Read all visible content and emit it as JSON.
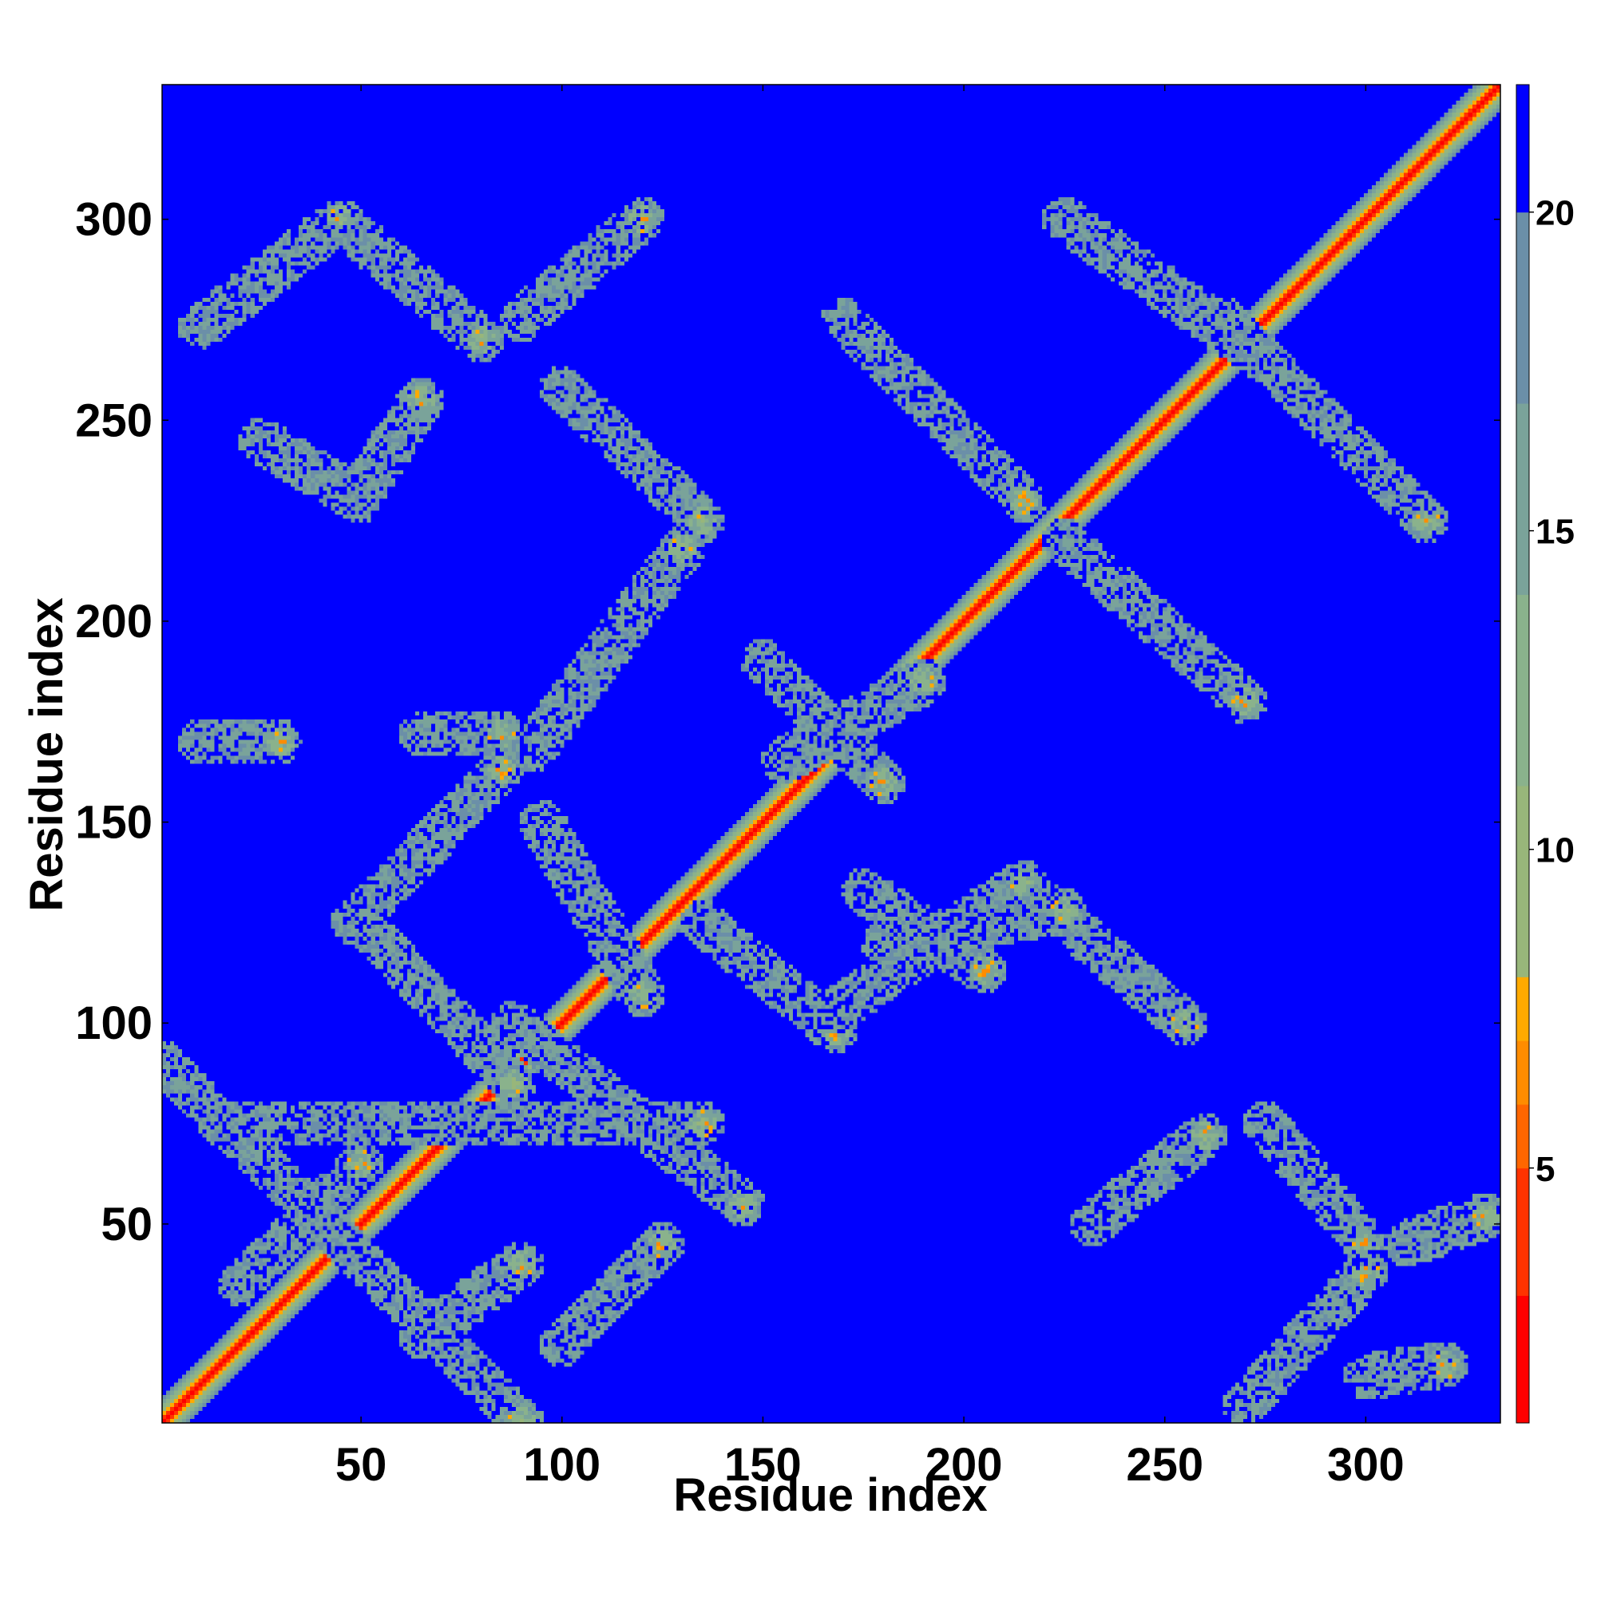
{
  "chart_data": {
    "type": "heatmap",
    "title": "",
    "xlabel": "Residue index",
    "ylabel": "Residue index",
    "n_residues": 333,
    "xlim": [
      1,
      333
    ],
    "ylim": [
      1,
      333
    ],
    "x_ticks": [
      50,
      100,
      150,
      200,
      250,
      300
    ],
    "y_ticks": [
      50,
      100,
      150,
      200,
      250,
      300
    ],
    "x_tick_labels": [
      "50",
      "100",
      "150",
      "200",
      "250",
      "300"
    ],
    "y_tick_labels": [
      "50",
      "100",
      "150",
      "200",
      "250",
      "300"
    ],
    "grid": false,
    "colorbar": {
      "position": "right",
      "range": [
        1,
        22
      ],
      "ticks": [
        5,
        10,
        15,
        20
      ],
      "tick_labels": [
        "5",
        "10",
        "15",
        "20"
      ],
      "colors": [
        "#ff0000",
        "#ff3300",
        "#ff6600",
        "#ff8c00",
        "#ffaa00",
        "#98b67a",
        "#8ab28c",
        "#7aa39a",
        "#6b8fa8",
        "#0000ff"
      ],
      "level_edges": [
        1,
        3,
        5,
        6,
        7,
        8,
        11,
        14,
        17,
        20,
        22
      ]
    },
    "background_value": 22,
    "diagonal": {
      "from": 1,
      "to": 333
    },
    "contact_bands": [
      {
        "a": [
          1,
          90
        ],
        "b": [
          90,
          1
        ]
      },
      {
        "a": [
          15,
          75
        ],
        "b": [
          135,
          75
        ]
      },
      {
        "a": [
          88,
          100
        ],
        "b": [
          145,
          55
        ]
      },
      {
        "a": [
          48,
          125
        ],
        "b": [
          85,
          163
        ]
      },
      {
        "a": [
          50,
          125
        ],
        "b": [
          88,
          85
        ]
      },
      {
        "a": [
          95,
          150
        ],
        "b": [
          120,
          107
        ]
      },
      {
        "a": [
          93,
          168
        ],
        "b": [
          130,
          218
        ]
      },
      {
        "a": [
          100,
          258
        ],
        "b": [
          135,
          225
        ]
      },
      {
        "a": [
          135,
          125
        ],
        "b": [
          168,
          98
        ]
      },
      {
        "a": [
          168,
          103
        ],
        "b": [
          215,
          135
        ]
      },
      {
        "a": [
          175,
          133
        ],
        "b": [
          205,
          113
        ]
      },
      {
        "a": [
          150,
          190
        ],
        "b": [
          180,
          160
        ]
      },
      {
        "a": [
          155,
          165
        ],
        "b": [
          190,
          185
        ]
      },
      {
        "a": [
          170,
          275
        ],
        "b": [
          215,
          230
        ]
      },
      {
        "a": [
          225,
          220
        ],
        "b": [
          270,
          180
        ]
      },
      {
        "a": [
          220,
          130
        ],
        "b": [
          255,
          100
        ]
      },
      {
        "a": [
          225,
          300
        ],
        "b": [
          275,
          265
        ]
      },
      {
        "a": [
          265,
          275
        ],
        "b": [
          315,
          225
        ]
      },
      {
        "a": [
          10,
          273
        ],
        "b": [
          45,
          300
        ]
      },
      {
        "a": [
          50,
          295
        ],
        "b": [
          80,
          270
        ]
      },
      {
        "a": [
          25,
          245
        ],
        "b": [
          50,
          230
        ]
      },
      {
        "a": [
          50,
          232
        ],
        "b": [
          65,
          255
        ]
      },
      {
        "a": [
          232,
          50
        ],
        "b": [
          260,
          72
        ]
      },
      {
        "a": [
          270,
          5
        ],
        "b": [
          300,
          38
        ]
      },
      {
        "a": [
          275,
          75
        ],
        "b": [
          300,
          45
        ]
      },
      {
        "a": [
          10,
          170
        ],
        "b": [
          30,
          170
        ]
      },
      {
        "a": [
          65,
          172
        ],
        "b": [
          85,
          172
        ]
      },
      {
        "a": [
          90,
          275
        ],
        "b": [
          120,
          300
        ]
      },
      {
        "a": [
          300,
          12
        ],
        "b": [
          320,
          15
        ]
      },
      {
        "a": [
          310,
          45
        ],
        "b": [
          330,
          52
        ]
      },
      {
        "a": [
          20,
          35
        ],
        "b": [
          50,
          65
        ]
      },
      {
        "a": [
          65,
          22
        ],
        "b": [
          90,
          40
        ]
      },
      {
        "a": [
          100,
          20
        ],
        "b": [
          125,
          45
        ]
      },
      {
        "a": [
          180,
          120
        ],
        "b": [
          225,
          128
        ]
      }
    ]
  }
}
